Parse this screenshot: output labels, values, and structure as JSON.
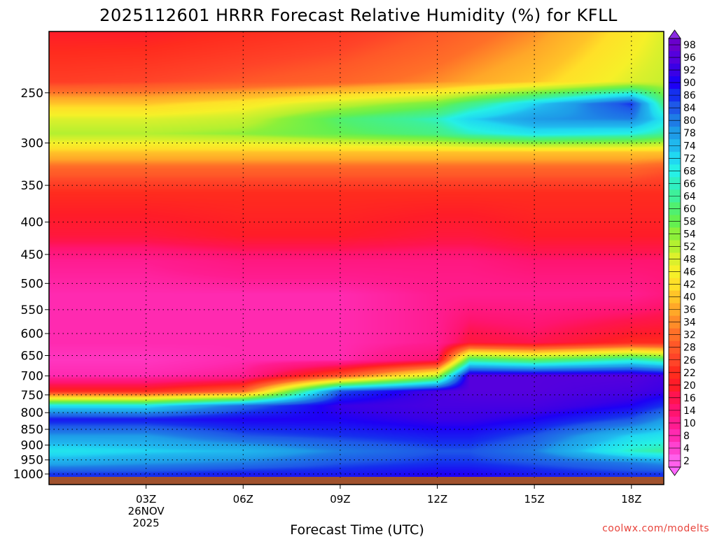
{
  "chart_data": {
    "type": "heatmap",
    "title": "2025112601 HRRR Forecast Relative Humidity (%) for KFLL",
    "xlabel": "Forecast Time (UTC)",
    "ylabel": "",
    "credit": "coolwx.com/modelts",
    "x_ticks": [
      {
        "hour": 3,
        "lines": [
          "03Z",
          "26NOV",
          "2025"
        ]
      },
      {
        "hour": 6,
        "lines": [
          "06Z"
        ]
      },
      {
        "hour": 9,
        "lines": [
          "09Z"
        ]
      },
      {
        "hour": 12,
        "lines": [
          "12Z"
        ]
      },
      {
        "hour": 15,
        "lines": [
          "15Z"
        ]
      },
      {
        "hour": 18,
        "lines": [
          "18Z"
        ]
      }
    ],
    "xlim": [
      0,
      19
    ],
    "y_ticks": [
      "250",
      "300",
      "350",
      "400",
      "450",
      "500",
      "550",
      "600",
      "650",
      "700",
      "750",
      "800",
      "850",
      "900",
      "950",
      "1000"
    ],
    "y_tick_values": [
      250,
      300,
      350,
      400,
      450,
      500,
      550,
      600,
      650,
      700,
      750,
      800,
      850,
      900,
      950,
      1000
    ],
    "ylim": [
      200,
      1013
    ],
    "y_scale": "log, pressure decreasing upward",
    "grid": true,
    "colorbar": {
      "labels": [
        "98",
        "96",
        "92",
        "90",
        "86",
        "84",
        "80",
        "78",
        "74",
        "72",
        "68",
        "66",
        "64",
        "60",
        "58",
        "54",
        "52",
        "48",
        "46",
        "42",
        "40",
        "36",
        "34",
        "32",
        "28",
        "26",
        "22",
        "20",
        "16",
        "14",
        "10",
        "8",
        "4",
        "2"
      ],
      "colors": [
        "#6a00cc",
        "#5500dd",
        "#3a00e6",
        "#1e00f5",
        "#1530ee",
        "#1e58e8",
        "#1e7ce6",
        "#1e9ce8",
        "#20b8ee",
        "#20d8f2",
        "#26f0e6",
        "#2ff0c2",
        "#3ef09a",
        "#50f070",
        "#64f050",
        "#8cf03a",
        "#b4f030",
        "#dcf02c",
        "#f6f028",
        "#ffe028",
        "#ffc428",
        "#ffa828",
        "#ff8c28",
        "#ff7028",
        "#ff5828",
        "#ff4428",
        "#ff2c1e",
        "#ff1c28",
        "#ff1450",
        "#ff1470",
        "#ff1c90",
        "#ff2ab0",
        "#ff42d0",
        "#ff60ec"
      ]
    },
    "profile_levels_hpa": [
      200,
      240,
      260,
      275,
      290,
      310,
      330,
      360,
      420,
      460,
      520,
      620,
      660,
      700,
      740,
      780,
      820,
      870,
      920,
      960,
      1000
    ],
    "rh_profiles": [
      {
        "hour": 0.5,
        "rh": [
          20,
          25,
          40,
          48,
          52,
          40,
          30,
          22,
          18,
          10,
          8,
          8,
          6,
          8,
          22,
          70,
          88,
          78,
          70,
          76,
          86
        ]
      },
      {
        "hour": 3,
        "rh": [
          20,
          26,
          40,
          48,
          52,
          40,
          30,
          22,
          18,
          10,
          8,
          8,
          6,
          8,
          22,
          70,
          88,
          78,
          72,
          78,
          86
        ]
      },
      {
        "hour": 6,
        "rh": [
          22,
          28,
          44,
          50,
          54,
          40,
          30,
          22,
          20,
          12,
          8,
          8,
          8,
          10,
          30,
          82,
          90,
          84,
          74,
          80,
          88
        ]
      },
      {
        "hour": 9,
        "rh": [
          24,
          30,
          50,
          60,
          58,
          40,
          30,
          22,
          20,
          12,
          8,
          8,
          8,
          28,
          84,
          92,
          90,
          86,
          80,
          84,
          88
        ]
      },
      {
        "hour": 12,
        "rh": [
          28,
          34,
          56,
          66,
          62,
          40,
          30,
          22,
          18,
          12,
          10,
          10,
          14,
          52,
          94,
          94,
          92,
          88,
          84,
          86,
          90
        ]
      },
      {
        "hour": 13,
        "rh": [
          30,
          36,
          62,
          72,
          66,
          40,
          30,
          22,
          18,
          12,
          10,
          18,
          62,
          96,
          96,
          94,
          92,
          88,
          84,
          86,
          90
        ]
      },
      {
        "hour": 15,
        "rh": [
          34,
          40,
          72,
          78,
          70,
          40,
          30,
          22,
          20,
          14,
          10,
          16,
          58,
          96,
          96,
          94,
          90,
          84,
          80,
          84,
          88
        ]
      },
      {
        "hour": 18,
        "rh": [
          44,
          48,
          86,
          80,
          68,
          40,
          30,
          22,
          20,
          14,
          10,
          22,
          66,
          96,
          94,
          90,
          84,
          72,
          66,
          80,
          86
        ]
      },
      {
        "hour": 19,
        "rh": [
          48,
          50,
          62,
          70,
          64,
          40,
          28,
          22,
          20,
          14,
          12,
          22,
          62,
          94,
          92,
          86,
          78,
          70,
          64,
          78,
          86
        ]
      }
    ],
    "ground_strip_color": "#a0522d"
  }
}
